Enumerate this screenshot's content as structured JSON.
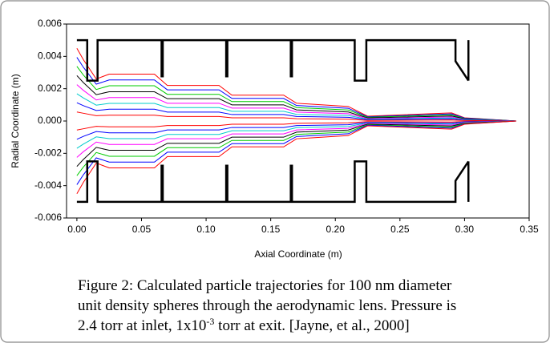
{
  "chart_data": {
    "type": "line",
    "x_label": "Axial Coordinate (m)",
    "y_label": "Radial Coordinate (m)",
    "caption": {
      "line1": "Figure 2: Calculated particle trajectories for 100 nm diameter",
      "line2": "unit density spheres through the aerodynamic lens. Pressure is",
      "line3_start": "2.4 torr at inlet, 1x10",
      "line3_superscript": "-3",
      "line3_end": " torr at exit. [Jayne, et al., 2000]"
    },
    "xlim": [
      -0.008,
      0.35
    ],
    "ylim": [
      -0.006,
      0.006
    ],
    "xticks": [
      {
        "value": 0,
        "label": "0.00"
      },
      {
        "value": 0.05,
        "label": "0.05"
      },
      {
        "value": 0.1,
        "label": "0.10"
      },
      {
        "value": 0.15,
        "label": "0.15"
      },
      {
        "value": 0.2,
        "label": "0.20"
      },
      {
        "value": 0.25,
        "label": "0.25"
      },
      {
        "value": 0.3,
        "label": "0.30"
      },
      {
        "value": 0.35,
        "label": "0.35"
      }
    ],
    "yticks": [
      {
        "value": 0.006,
        "label": "0.006"
      },
      {
        "value": 0.004,
        "label": "0.004"
      },
      {
        "value": 0.002,
        "label": "0.002"
      },
      {
        "value": 0,
        "label": "0.000"
      },
      {
        "value": -0.002,
        "label": "-0.002"
      },
      {
        "value": -0.004,
        "label": "-0.004"
      },
      {
        "value": -0.006,
        "label": "-0.006"
      }
    ],
    "x": [
      0,
      0.005,
      0.015,
      0.025,
      0.06,
      0.07,
      0.11,
      0.12,
      0.16,
      0.17,
      0.21,
      0.225,
      0.29,
      0.3,
      0.34
    ],
    "series": [
      {
        "color": "#ff0000",
        "values": [
          0.0045,
          0.0038,
          0.0026,
          0.0029,
          0.0029,
          0.0022,
          0.0022,
          0.0016,
          0.0016,
          0.0011,
          0.0009,
          0.0003,
          0.0005,
          0.0002,
          0
        ]
      },
      {
        "color": "#0000ff",
        "values": [
          0.00394,
          0.00333,
          0.00228,
          0.00254,
          0.00254,
          0.00193,
          0.00193,
          0.0014,
          0.0014,
          0.00096,
          0.00079,
          0.00026,
          0.00044,
          0.00018,
          0
        ]
      },
      {
        "color": "#00cc00",
        "values": [
          0.00338,
          0.00285,
          0.00195,
          0.00218,
          0.00218,
          0.00165,
          0.00165,
          0.0012,
          0.0012,
          0.00083,
          0.00068,
          0.00023,
          0.00038,
          0.00015,
          0
        ]
      },
      {
        "color": "#000000",
        "values": [
          0.00281,
          0.00238,
          0.00163,
          0.00181,
          0.00181,
          0.00138,
          0.00138,
          0.001,
          0.001,
          0.00069,
          0.00056,
          0.00019,
          0.00031,
          0.00013,
          0
        ]
      },
      {
        "color": "#ff00ff",
        "values": [
          0.00225,
          0.0019,
          0.0013,
          0.00145,
          0.00145,
          0.0011,
          0.0011,
          0.0008,
          0.0008,
          0.00055,
          0.00045,
          0.00015,
          0.00025,
          0.0001,
          0
        ]
      },
      {
        "color": "#00cccc",
        "values": [
          0.00169,
          0.00143,
          0.00098,
          0.00109,
          0.00109,
          0.00083,
          0.00083,
          0.0006,
          0.0006,
          0.00041,
          0.00034,
          0.00011,
          0.00019,
          8e-05,
          0
        ]
      },
      {
        "color": "#0000ff",
        "values": [
          0.00113,
          0.00095,
          0.00065,
          0.00073,
          0.00073,
          0.00055,
          0.00055,
          0.0004,
          0.0004,
          0.00028,
          0.00023,
          8e-05,
          0.00013,
          5e-05,
          0
        ]
      },
      {
        "color": "#ff0000",
        "values": [
          0.00056,
          0.00048,
          0.00033,
          0.00036,
          0.00036,
          0.00028,
          0.00028,
          0.0002,
          0.0002,
          0.00014,
          0.00011,
          4e-05,
          6e-05,
          3e-05,
          0
        ]
      },
      {
        "color": "#ff0000",
        "values": [
          -0.00056,
          -0.00048,
          -0.00033,
          -0.00036,
          -0.00036,
          -0.00028,
          -0.00028,
          -0.0002,
          -0.0002,
          -0.00014,
          -0.00011,
          -4e-05,
          -6e-05,
          -3e-05,
          0
        ]
      },
      {
        "color": "#0000ff",
        "values": [
          -0.00113,
          -0.00095,
          -0.00065,
          -0.00073,
          -0.00073,
          -0.00055,
          -0.00055,
          -0.0004,
          -0.0004,
          -0.00028,
          -0.00023,
          -8e-05,
          -0.00013,
          -5e-05,
          0
        ]
      },
      {
        "color": "#00cccc",
        "values": [
          -0.00169,
          -0.00143,
          -0.00098,
          -0.00109,
          -0.00109,
          -0.00083,
          -0.00083,
          -0.0006,
          -0.0006,
          -0.00041,
          -0.00034,
          -0.00011,
          -0.00019,
          -8e-05,
          0
        ]
      },
      {
        "color": "#ff00ff",
        "values": [
          -0.00225,
          -0.0019,
          -0.0013,
          -0.00145,
          -0.00145,
          -0.0011,
          -0.0011,
          -0.0008,
          -0.0008,
          -0.00055,
          -0.00045,
          -0.00015,
          -0.00025,
          -0.0001,
          0
        ]
      },
      {
        "color": "#000000",
        "values": [
          -0.00281,
          -0.00238,
          -0.00163,
          -0.00181,
          -0.00181,
          -0.00138,
          -0.00138,
          -0.001,
          -0.001,
          -0.00069,
          -0.00056,
          -0.00019,
          -0.00031,
          -0.00013,
          0
        ]
      },
      {
        "color": "#00cc00",
        "values": [
          -0.00338,
          -0.00285,
          -0.00195,
          -0.00218,
          -0.00218,
          -0.00165,
          -0.00165,
          -0.0012,
          -0.0012,
          -0.00083,
          -0.00068,
          -0.00023,
          -0.00038,
          -0.00015,
          0
        ]
      },
      {
        "color": "#0000ff",
        "values": [
          -0.00394,
          -0.00333,
          -0.00228,
          -0.00254,
          -0.00254,
          -0.00193,
          -0.00193,
          -0.0014,
          -0.0014,
          -0.00096,
          -0.00079,
          -0.00026,
          -0.00044,
          -0.00018,
          0
        ]
      },
      {
        "color": "#ff0000",
        "values": [
          -0.0045,
          -0.0038,
          -0.0026,
          -0.0029,
          -0.0029,
          -0.0022,
          -0.0022,
          -0.0016,
          -0.0016,
          -0.0011,
          -0.0009,
          -0.0003,
          -0.0005,
          -0.0002,
          0
        ]
      }
    ],
    "lens_walls": [
      {
        "x": [
          0,
          0.008,
          0.008,
          0.016,
          0.016,
          0.215,
          0.215,
          0.224,
          0.224,
          0.293,
          0.293,
          0.303,
          null,
          0.303,
          0.303
        ],
        "y": [
          0.005,
          0.005,
          0.0025,
          0.0025,
          0.005,
          0.005,
          0.0025,
          0.0025,
          0.005,
          0.005,
          0.0037,
          0.0025,
          null,
          0.005,
          0.0025
        ]
      },
      {
        "x": [
          0,
          0.008,
          0.008,
          0.016,
          0.016,
          0.215,
          0.215,
          0.224,
          0.224,
          0.293,
          0.293,
          0.303,
          null,
          0.303,
          0.303
        ],
        "y": [
          -0.005,
          -0.005,
          -0.0025,
          -0.0025,
          -0.005,
          -0.005,
          -0.0025,
          -0.0025,
          -0.005,
          -0.005,
          -0.0037,
          -0.0025,
          null,
          -0.005,
          -0.0025
        ]
      }
    ],
    "lens_plates": [
      {
        "x": [
          0.066,
          0.066
        ],
        "y": [
          0.005,
          0.0027
        ]
      },
      {
        "x": [
          0.116,
          0.116
        ],
        "y": [
          0.005,
          0.0027
        ]
      },
      {
        "x": [
          0.166,
          0.166
        ],
        "y": [
          0.005,
          0.0027
        ]
      },
      {
        "x": [
          0.066,
          0.066
        ],
        "y": [
          -0.005,
          -0.0027
        ]
      },
      {
        "x": [
          0.116,
          0.116
        ],
        "y": [
          -0.005,
          -0.0027
        ]
      },
      {
        "x": [
          0.166,
          0.166
        ],
        "y": [
          -0.005,
          -0.0027
        ]
      }
    ]
  }
}
